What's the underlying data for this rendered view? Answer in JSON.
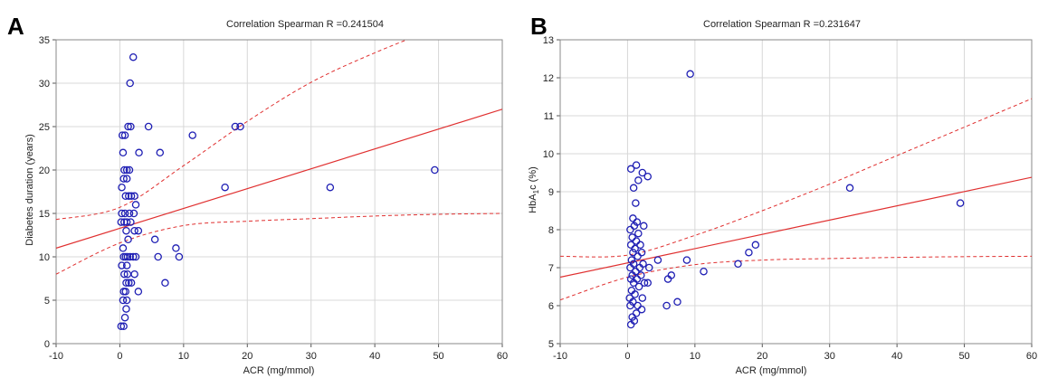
{
  "chart_data": [
    {
      "panel": "A",
      "type": "scatter",
      "title": "Correlation Spearman R =0.241504",
      "xlabel": "ACR (mg/mmol)",
      "ylabel": "Diabetes duration (years)",
      "xlim": [
        -10,
        60
      ],
      "ylim": [
        0,
        35
      ],
      "xticks": [
        -10,
        0,
        10,
        20,
        30,
        40,
        50,
        60
      ],
      "yticks": [
        0,
        5,
        10,
        15,
        20,
        25,
        30,
        35
      ],
      "grid": true,
      "point_color": "#1f1fb4",
      "fit_color": "#e03030",
      "points": [
        {
          "x": 0.2,
          "y": 2
        },
        {
          "x": 0.6,
          "y": 2
        },
        {
          "x": 0.8,
          "y": 3
        },
        {
          "x": 1.0,
          "y": 4
        },
        {
          "x": 0.5,
          "y": 5
        },
        {
          "x": 1.1,
          "y": 5
        },
        {
          "x": 0.6,
          "y": 6
        },
        {
          "x": 0.9,
          "y": 6
        },
        {
          "x": 1.0,
          "y": 7
        },
        {
          "x": 1.4,
          "y": 7
        },
        {
          "x": 1.8,
          "y": 7
        },
        {
          "x": 0.7,
          "y": 8
        },
        {
          "x": 1.2,
          "y": 8
        },
        {
          "x": 2.3,
          "y": 8
        },
        {
          "x": 0.3,
          "y": 9
        },
        {
          "x": 1.1,
          "y": 9
        },
        {
          "x": 0.6,
          "y": 10
        },
        {
          "x": 0.9,
          "y": 10
        },
        {
          "x": 1.2,
          "y": 10
        },
        {
          "x": 1.6,
          "y": 10
        },
        {
          "x": 2.1,
          "y": 10
        },
        {
          "x": 2.5,
          "y": 10
        },
        {
          "x": 0.5,
          "y": 11
        },
        {
          "x": 1.3,
          "y": 12
        },
        {
          "x": 1.0,
          "y": 13
        },
        {
          "x": 2.3,
          "y": 13
        },
        {
          "x": 2.9,
          "y": 13
        },
        {
          "x": 0.2,
          "y": 14
        },
        {
          "x": 0.7,
          "y": 14
        },
        {
          "x": 1.1,
          "y": 14
        },
        {
          "x": 1.7,
          "y": 14
        },
        {
          "x": 0.3,
          "y": 15
        },
        {
          "x": 0.8,
          "y": 15
        },
        {
          "x": 1.5,
          "y": 15
        },
        {
          "x": 2.2,
          "y": 15
        },
        {
          "x": 2.5,
          "y": 16
        },
        {
          "x": 0.9,
          "y": 17
        },
        {
          "x": 1.4,
          "y": 17
        },
        {
          "x": 1.8,
          "y": 17
        },
        {
          "x": 2.3,
          "y": 17
        },
        {
          "x": 0.3,
          "y": 18
        },
        {
          "x": 0.6,
          "y": 19
        },
        {
          "x": 1.1,
          "y": 19
        },
        {
          "x": 0.7,
          "y": 20
        },
        {
          "x": 1.1,
          "y": 20
        },
        {
          "x": 1.5,
          "y": 20
        },
        {
          "x": 0.5,
          "y": 22
        },
        {
          "x": 0.4,
          "y": 24
        },
        {
          "x": 0.8,
          "y": 24
        },
        {
          "x": 1.3,
          "y": 25
        },
        {
          "x": 1.7,
          "y": 25
        },
        {
          "x": 1.6,
          "y": 30
        },
        {
          "x": 2.1,
          "y": 33
        },
        {
          "x": 3.0,
          "y": 22
        },
        {
          "x": 2.9,
          "y": 6
        },
        {
          "x": 4.5,
          "y": 25
        },
        {
          "x": 5.5,
          "y": 12
        },
        {
          "x": 6.0,
          "y": 10
        },
        {
          "x": 6.3,
          "y": 22
        },
        {
          "x": 7.1,
          "y": 7
        },
        {
          "x": 8.8,
          "y": 11
        },
        {
          "x": 9.3,
          "y": 10
        },
        {
          "x": 11.4,
          "y": 24
        },
        {
          "x": 16.5,
          "y": 18
        },
        {
          "x": 18.1,
          "y": 25
        },
        {
          "x": 18.9,
          "y": 25
        },
        {
          "x": 33.0,
          "y": 18
        },
        {
          "x": 49.4,
          "y": 20
        }
      ],
      "fit": [
        [
          -10,
          11.0
        ],
        [
          60,
          27.0
        ]
      ],
      "ci_upper": [
        [
          -10,
          14.3
        ],
        [
          0,
          15.7
        ],
        [
          10,
          20.5
        ],
        [
          20,
          25.6
        ],
        [
          30,
          30.1
        ],
        [
          40,
          33.5
        ],
        [
          50,
          36.4
        ],
        [
          60,
          39.0
        ]
      ],
      "ci_lower": [
        [
          -10,
          8.0
        ],
        [
          0,
          11.6
        ],
        [
          10,
          13.6
        ],
        [
          20,
          14.1
        ],
        [
          30,
          14.4
        ],
        [
          40,
          14.7
        ],
        [
          50,
          14.9
        ],
        [
          60,
          15.0
        ]
      ]
    },
    {
      "panel": "B",
      "type": "scatter",
      "title": "Correlation Spearman R =0.231647",
      "xlabel": "ACR (mg/mmol)",
      "ylabel_main": "HbA",
      "ylabel_sub": "1",
      "ylabel_tail": "c (%)",
      "xlim": [
        -10,
        60
      ],
      "ylim": [
        5,
        13
      ],
      "xticks": [
        -10,
        0,
        10,
        20,
        30,
        40,
        50,
        60
      ],
      "yticks": [
        5,
        6,
        7,
        8,
        9,
        10,
        11,
        12,
        13
      ],
      "grid": true,
      "point_color": "#1f1fb4",
      "fit_color": "#e03030",
      "points": [
        {
          "x": 0.5,
          "y": 5.5
        },
        {
          "x": 1.0,
          "y": 5.6
        },
        {
          "x": 0.7,
          "y": 5.7
        },
        {
          "x": 1.3,
          "y": 5.8
        },
        {
          "x": 2.1,
          "y": 5.9
        },
        {
          "x": 0.4,
          "y": 6.0
        },
        {
          "x": 1.5,
          "y": 6.0
        },
        {
          "x": 0.8,
          "y": 6.1
        },
        {
          "x": 0.3,
          "y": 6.2
        },
        {
          "x": 2.2,
          "y": 6.2
        },
        {
          "x": 1.1,
          "y": 6.3
        },
        {
          "x": 0.6,
          "y": 6.4
        },
        {
          "x": 1.7,
          "y": 6.5
        },
        {
          "x": 0.9,
          "y": 6.6
        },
        {
          "x": 2.5,
          "y": 6.6
        },
        {
          "x": 3.0,
          "y": 6.6
        },
        {
          "x": 0.5,
          "y": 6.7
        },
        {
          "x": 1.4,
          "y": 6.7
        },
        {
          "x": 0.7,
          "y": 6.8
        },
        {
          "x": 2.0,
          "y": 6.8
        },
        {
          "x": 1.2,
          "y": 6.9
        },
        {
          "x": 0.4,
          "y": 7.0
        },
        {
          "x": 1.8,
          "y": 7.0
        },
        {
          "x": 3.2,
          "y": 7.0
        },
        {
          "x": 0.9,
          "y": 7.1
        },
        {
          "x": 2.3,
          "y": 7.1
        },
        {
          "x": 0.6,
          "y": 7.2
        },
        {
          "x": 1.5,
          "y": 7.3
        },
        {
          "x": 0.8,
          "y": 7.4
        },
        {
          "x": 2.1,
          "y": 7.4
        },
        {
          "x": 1.1,
          "y": 7.5
        },
        {
          "x": 0.5,
          "y": 7.6
        },
        {
          "x": 1.9,
          "y": 7.6
        },
        {
          "x": 1.3,
          "y": 7.7
        },
        {
          "x": 0.7,
          "y": 7.8
        },
        {
          "x": 1.6,
          "y": 7.9
        },
        {
          "x": 0.4,
          "y": 8.0
        },
        {
          "x": 1.0,
          "y": 8.1
        },
        {
          "x": 2.4,
          "y": 8.1
        },
        {
          "x": 1.4,
          "y": 8.2
        },
        {
          "x": 0.8,
          "y": 8.3
        },
        {
          "x": 1.2,
          "y": 8.7
        },
        {
          "x": 0.9,
          "y": 9.1
        },
        {
          "x": 1.6,
          "y": 9.3
        },
        {
          "x": 3.0,
          "y": 9.4
        },
        {
          "x": 0.5,
          "y": 9.6
        },
        {
          "x": 2.2,
          "y": 9.5
        },
        {
          "x": 1.3,
          "y": 9.7
        },
        {
          "x": 4.5,
          "y": 7.2
        },
        {
          "x": 5.8,
          "y": 6.0
        },
        {
          "x": 6.0,
          "y": 6.7
        },
        {
          "x": 6.5,
          "y": 6.8
        },
        {
          "x": 7.4,
          "y": 6.1
        },
        {
          "x": 8.8,
          "y": 7.2
        },
        {
          "x": 9.3,
          "y": 12.1
        },
        {
          "x": 11.3,
          "y": 6.9
        },
        {
          "x": 16.4,
          "y": 7.1
        },
        {
          "x": 18.0,
          "y": 7.4
        },
        {
          "x": 19.0,
          "y": 7.6
        },
        {
          "x": 33.0,
          "y": 9.1
        },
        {
          "x": 49.4,
          "y": 8.7
        }
      ],
      "fit": [
        [
          -10,
          6.75
        ],
        [
          60,
          9.38
        ]
      ],
      "ci_upper": [
        [
          -10,
          7.3
        ],
        [
          0,
          7.33
        ],
        [
          10,
          7.85
        ],
        [
          20,
          8.5
        ],
        [
          30,
          9.2
        ],
        [
          40,
          9.95
        ],
        [
          50,
          10.7
        ],
        [
          60,
          11.45
        ]
      ],
      "ci_lower": [
        [
          -10,
          6.15
        ],
        [
          0,
          6.75
        ],
        [
          10,
          7.08
        ],
        [
          20,
          7.2
        ],
        [
          30,
          7.24
        ],
        [
          40,
          7.27
        ],
        [
          50,
          7.29
        ],
        [
          60,
          7.3
        ]
      ]
    }
  ],
  "panel_letters": [
    "A",
    "B"
  ]
}
